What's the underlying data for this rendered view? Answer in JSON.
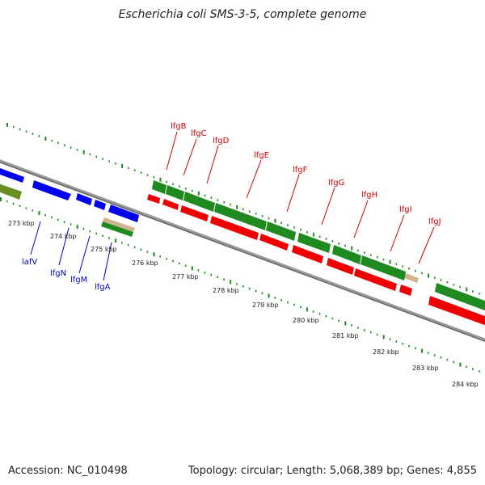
{
  "title": "Escherichia coli SMS-3-5, complete genome",
  "footer": {
    "accession": "Accession: NC_010498",
    "topology": "Topology: circular; Length: 5,068,389 bp; Genes: 4,855"
  },
  "colors": {
    "backbone": "#808080",
    "cds_forward": "#0000ee",
    "cds_reverse": "#ee0000",
    "gene_green": "#1f8a1f",
    "olive": "#6b8e23",
    "tan": "#d2b48c",
    "red_label": "#cc0000",
    "blue_label": "#0000cc"
  },
  "scale_labels": [
    "273 kbp",
    "274 kbp",
    "275 kbp",
    "276 kbp",
    "277 kbp",
    "278 kbp",
    "279 kbp",
    "280 kbp",
    "281 kbp",
    "282 kbp",
    "283 kbp",
    "284 kbp"
  ],
  "red_gene_labels": [
    "lfgB",
    "lfgC",
    "lfgD",
    "lfgE",
    "lfgF",
    "lfgG",
    "lfgH",
    "lfgI",
    "lfgJ"
  ],
  "blue_gene_labels": [
    "lafV",
    "lfgN",
    "lfgM",
    "lfgA"
  ]
}
